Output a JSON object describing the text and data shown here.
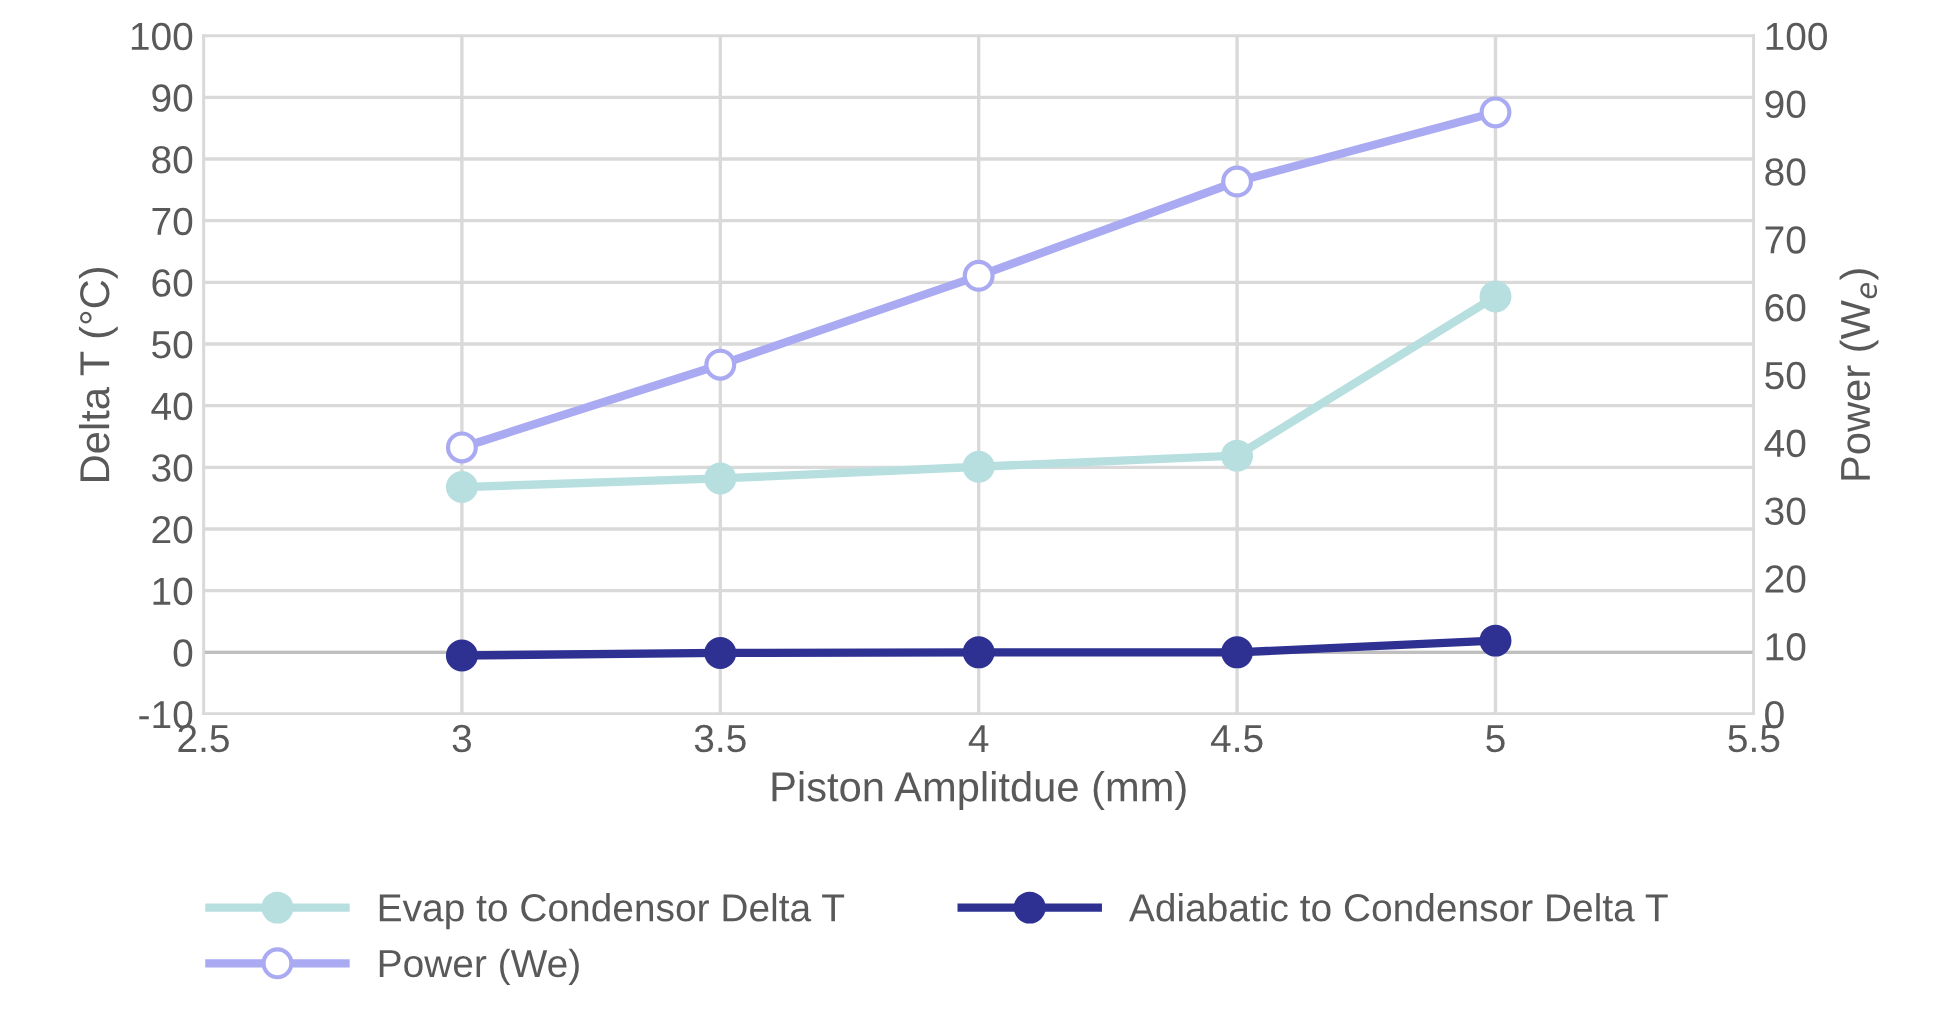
{
  "chart_data": {
    "type": "line",
    "xlabel": "Piston Amplitdue (mm)",
    "ylabel": "Delta T (°C)",
    "y2label": "Power (W$_{e}$)",
    "x": [
      3,
      3.5,
      4,
      4.5,
      5
    ],
    "series": [
      {
        "name": "Evap to Condensor Delta T",
        "color": "#b8dfe0",
        "values": [
          26.8,
          28.2,
          30.1,
          31.9,
          57.7
        ]
      },
      {
        "name": "Adiabatic to Condensor Delta T",
        "color": "#2e3192",
        "values": [
          -0.5,
          -0.1,
          0,
          0,
          1.9
        ]
      },
      {
        "name": "Power (We)",
        "color": "#aaaaf2",
        "axis": "y2",
        "values": [
          39.3,
          51.5,
          64.6,
          78.5,
          88.7
        ]
      }
    ],
    "xlim": [
      2.5,
      5.5
    ],
    "xticks": [
      2.5,
      3,
      3.5,
      4,
      4.5,
      5,
      5.5
    ],
    "ylim": [
      -10,
      100
    ],
    "yticks": [
      -10,
      0,
      10,
      20,
      30,
      40,
      50,
      60,
      70,
      80,
      90,
      100
    ],
    "y2lim": [
      0,
      100
    ],
    "y2ticks": [
      0,
      10,
      20,
      30,
      40,
      50,
      60,
      70,
      80,
      90,
      100
    ],
    "grid": true,
    "legend": "bottom",
    "marker": "circle",
    "line_style": "solid"
  }
}
